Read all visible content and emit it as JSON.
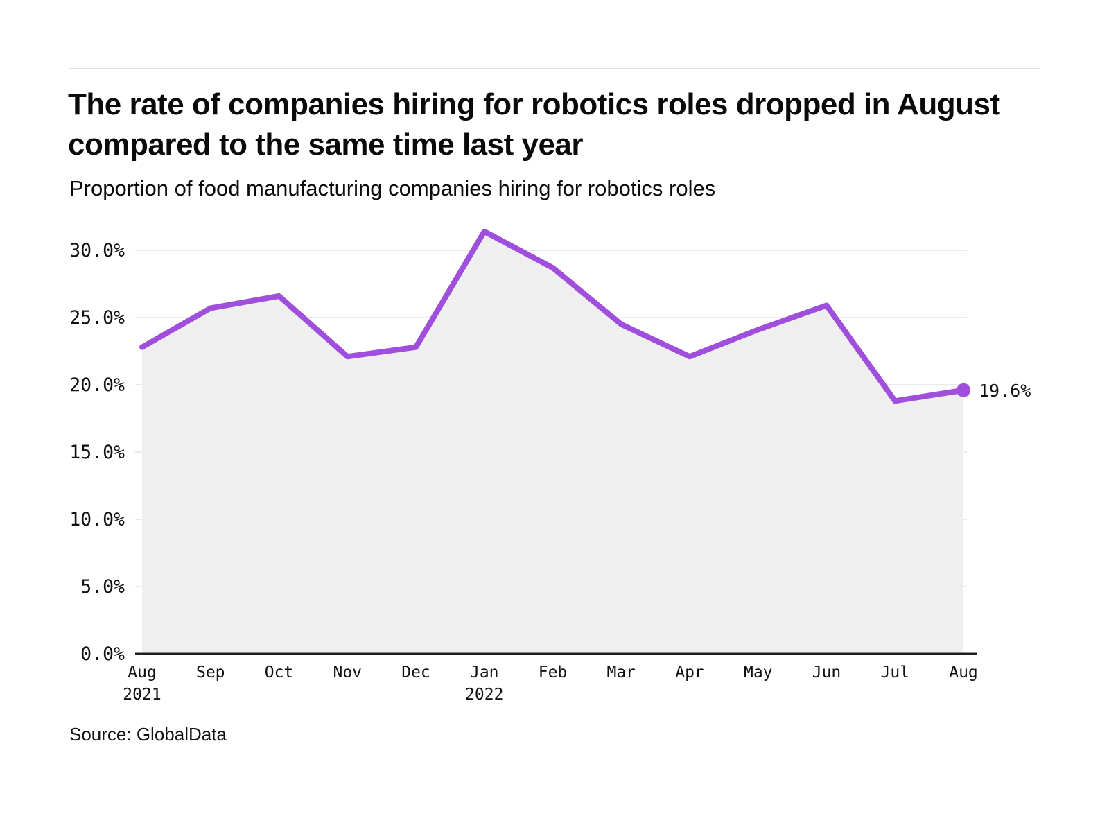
{
  "header": {
    "title": "The rate of companies hiring for robotics roles dropped in August compared to the same time last year",
    "subtitle": "Proportion of food manufacturing companies hiring for robotics roles"
  },
  "footer": {
    "source": "Source: GlobalData"
  },
  "chart_data": {
    "type": "area",
    "title": "Proportion of food manufacturing companies hiring for robotics roles",
    "categories": [
      "Aug",
      "Sep",
      "Oct",
      "Nov",
      "Dec",
      "Jan",
      "Feb",
      "Mar",
      "Apr",
      "May",
      "Jun",
      "Jul",
      "Aug"
    ],
    "category_sublabels": {
      "0": "2021",
      "5": "2022"
    },
    "values": [
      22.8,
      25.7,
      26.6,
      22.1,
      22.8,
      31.4,
      28.7,
      24.5,
      22.1,
      24.1,
      25.9,
      18.8,
      19.6
    ],
    "unit": "%",
    "yticks": [
      0,
      5,
      10,
      15,
      20,
      25,
      30
    ],
    "ytick_labels": [
      "0.0%",
      "5.0%",
      "10.0%",
      "15.0%",
      "20.0%",
      "25.0%",
      "30.0%"
    ],
    "ylim": [
      0,
      32
    ],
    "grid": true,
    "legend": "none",
    "end_annotation": "19.6%",
    "colors": {
      "line": "#A04EDC",
      "area": "#EFEFEF",
      "grid": "#E4E4E4",
      "axis": "#1F1F1F",
      "text": "#111111"
    }
  }
}
